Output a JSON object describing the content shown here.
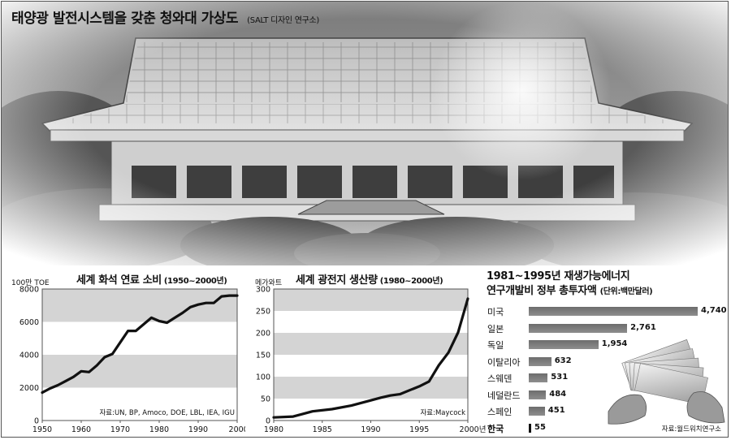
{
  "title": {
    "main": "태양광 발전시스템을 갖춘 청와대 가상도",
    "sub": "(SALT 디자인 연구소)"
  },
  "chart_data": [
    {
      "type": "line",
      "title": "세계 화석 연료 소비",
      "subtitle": "(1950~2000년)",
      "ylabel": "100만 TOE",
      "xlabel": "",
      "x": [
        1950,
        1952,
        1954,
        1956,
        1958,
        1960,
        1962,
        1964,
        1966,
        1968,
        1970,
        1972,
        1974,
        1976,
        1978,
        1980,
        1982,
        1984,
        1986,
        1988,
        1990,
        1992,
        1994,
        1996,
        1998,
        2000
      ],
      "values": [
        1700,
        1950,
        2150,
        2400,
        2650,
        3000,
        2950,
        3350,
        3850,
        4050,
        4750,
        5450,
        5450,
        5850,
        6250,
        6050,
        5950,
        6250,
        6550,
        6900,
        7050,
        7150,
        7150,
        7550,
        7600,
        7600
      ],
      "xlim": [
        1950,
        2000
      ],
      "ylim": [
        0,
        8000
      ],
      "xticks": [
        "1950",
        "1960",
        "1970",
        "1980",
        "1990",
        "2000"
      ],
      "xtick_suffix": "년",
      "yticks": [
        "0",
        "2000",
        "4000",
        "6000",
        "8000"
      ],
      "grid": true,
      "source": "자료:UN, BP, Amoco, DOE, LBL, IEA, IGU"
    },
    {
      "type": "line",
      "title": "세계 광전지 생산량",
      "subtitle": "(1980~2000년)",
      "ylabel": "메가와트",
      "xlabel": "",
      "x": [
        1980,
        1982,
        1984,
        1986,
        1988,
        1990,
        1991,
        1992,
        1993,
        1994,
        1995,
        1996,
        1997,
        1998,
        1999,
        2000
      ],
      "values": [
        7,
        9,
        21,
        26,
        34,
        46,
        52,
        57,
        60,
        69,
        78,
        89,
        126,
        155,
        201,
        278
      ],
      "xlim": [
        1980,
        2000
      ],
      "ylim": [
        0,
        300
      ],
      "xticks": [
        "1980",
        "1985",
        "1990",
        "1995",
        "2000"
      ],
      "xtick_suffix": "년",
      "yticks": [
        "0",
        "50",
        "100",
        "150",
        "200",
        "250",
        "300"
      ],
      "grid": true,
      "source": "자료:Maycock"
    },
    {
      "type": "bar",
      "orientation": "horizontal",
      "title": "1981~1995년 재생가능에너지",
      "title_line2": "연구개발비 정부 총투자액",
      "unit_note": "(단위:백만달러)",
      "categories": [
        "미국",
        "일본",
        "독일",
        "이탈리아",
        "스웨덴",
        "네덜란드",
        "스페인",
        "한국"
      ],
      "values": [
        4740,
        2761,
        1954,
        632,
        531,
        484,
        451,
        55
      ],
      "value_labels": [
        "4,740",
        "2,761",
        "1,954",
        "632",
        "531",
        "484",
        "451",
        "55"
      ],
      "highlight": "한국",
      "source": "자료:월드워치연구소"
    }
  ]
}
